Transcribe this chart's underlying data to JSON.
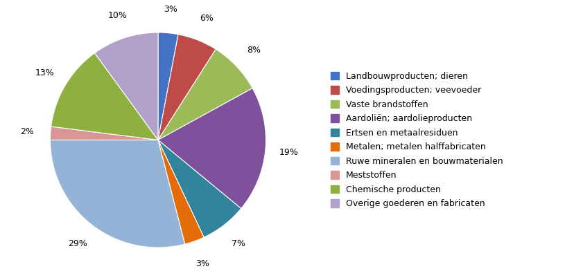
{
  "labels": [
    "Landbouwproducten; dieren",
    "Voedingsproducten; veevoeder",
    "Vaste brandstoffen",
    "Aardoliën; aardolieproducten",
    "Ertsen en metaalresiduen",
    "Metalen; metalen halffabricaten",
    "Ruwe mineralen en bouwmaterialen",
    "Meststoffen",
    "Chemische producten",
    "Overige goederen en fabricaten"
  ],
  "values": [
    3,
    6,
    8,
    19,
    7,
    3,
    29,
    2,
    13,
    10
  ],
  "colors": [
    "#4472C4",
    "#BE4B48",
    "#9BBB59",
    "#7F519C",
    "#31849B",
    "#E36C09",
    "#95B3D7",
    "#D99694",
    "#8DB040",
    "#B1A0C7"
  ],
  "pct_labels": [
    "3%",
    "6%",
    "8%",
    "19%",
    "7%",
    "3%",
    "29%",
    "2%",
    "13%",
    "10%"
  ],
  "background_color": "#FFFFFF",
  "figsize": [
    8.29,
    4.05
  ],
  "dpi": 100
}
